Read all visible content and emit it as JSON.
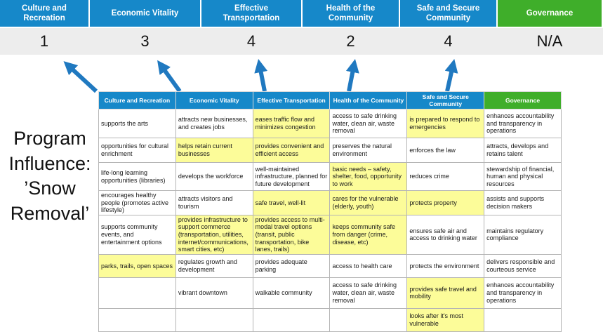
{
  "slide": {
    "title": "Program\nInfluence:\n’Snow\nRemoval’"
  },
  "colors": {
    "header_blue": "#1688C9",
    "header_green": "#3FAE2A",
    "highlight_yellow": "#FCFC99",
    "arrow_blue": "#2079C0",
    "score_bar_bg": "#EDEDED"
  },
  "summary": {
    "columns": [
      {
        "label": "Culture and Recreation",
        "score": "1",
        "color": "#1688C9"
      },
      {
        "label": "Economic Vitality",
        "score": "3",
        "color": "#1688C9"
      },
      {
        "label": "Effective Transportation",
        "score": "4",
        "color": "#1688C9"
      },
      {
        "label": "Health of the Community",
        "score": "2",
        "color": "#1688C9"
      },
      {
        "label": "Safe and Secure Community",
        "score": "4",
        "color": "#1688C9"
      },
      {
        "label": "Governance",
        "score": "N/A",
        "color": "#3FAE2A"
      }
    ]
  },
  "matrix": {
    "headers": [
      "Culture and Recreation",
      "Economic Vitality",
      "Effective Transportation",
      "Health of the Community",
      "Safe and Secure Community",
      "Governance"
    ],
    "rows": [
      [
        {
          "text": "supports the arts",
          "highlight": false
        },
        {
          "text": "attracts new businesses, and creates jobs",
          "highlight": false
        },
        {
          "text": "eases traffic flow and minimizes congestion",
          "highlight": true
        },
        {
          "text": "access to safe drinking water, clean air, waste removal",
          "highlight": false
        },
        {
          "text": "is prepared to respond to emergencies",
          "highlight": true
        },
        {
          "text": "enhances accountability and transparency in operations",
          "highlight": false
        }
      ],
      [
        {
          "text": "opportunities for cultural enrichment",
          "highlight": false
        },
        {
          "text": "helps retain current businesses",
          "highlight": true
        },
        {
          "text": "provides convenient and efficient access",
          "highlight": true
        },
        {
          "text": "preserves the natural environment",
          "highlight": false
        },
        {
          "text": "enforces the law",
          "highlight": false
        },
        {
          "text": "attracts, develops and retains talent",
          "highlight": false
        }
      ],
      [
        {
          "text": "life-long learning opportunities (libraries)",
          "highlight": false
        },
        {
          "text": "develops the workforce",
          "highlight": false
        },
        {
          "text": "well-maintained infrastructure, planned for future development",
          "highlight": false
        },
        {
          "text": "basic needs – safety, shelter, food, opportunity to work",
          "highlight": true
        },
        {
          "text": "reduces crime",
          "highlight": false
        },
        {
          "text": "stewardship of financial, human and physical resources",
          "highlight": false
        }
      ],
      [
        {
          "text": "encourages healthy people (promotes active lifestyle)",
          "highlight": false
        },
        {
          "text": "attracts visitors and tourism",
          "highlight": false
        },
        {
          "text": "safe travel, well-lit",
          "highlight": true
        },
        {
          "text": "cares for the vulnerable (elderly, youth)",
          "highlight": true
        },
        {
          "text": "protects property",
          "highlight": true
        },
        {
          "text": "assists and supports decision makers",
          "highlight": false
        }
      ],
      [
        {
          "text": "supports community events, and entertainment options",
          "highlight": false
        },
        {
          "text": "provides infrastructure to support commerce (transportation, utilities, internet/communications, smart cities, etc)",
          "highlight": true
        },
        {
          "text": "provides access to multi-modal travel options (transit, public transportation, bike lanes, trails)",
          "highlight": true
        },
        {
          "text": "keeps community safe from danger (crime, disease, etc)",
          "highlight": true
        },
        {
          "text": "ensures safe air and access to drinking water",
          "highlight": false
        },
        {
          "text": "maintains regulatory compliance",
          "highlight": false
        }
      ],
      [
        {
          "text": "parks, trails, open spaces",
          "highlight": true
        },
        {
          "text": "regulates growth and development",
          "highlight": false
        },
        {
          "text": "provides adequate parking",
          "highlight": false
        },
        {
          "text": "access to health care",
          "highlight": false
        },
        {
          "text": "protects the environment",
          "highlight": false
        },
        {
          "text": "delivers responsible and courteous service",
          "highlight": false
        }
      ],
      [
        {
          "text": "",
          "highlight": false
        },
        {
          "text": "vibrant downtown",
          "highlight": false
        },
        {
          "text": "walkable community",
          "highlight": false
        },
        {
          "text": "access to safe drinking water, clean air, waste removal",
          "highlight": false
        },
        {
          "text": "provides safe travel and mobility",
          "highlight": true
        },
        {
          "text": "enhances accountability and transparency in operations",
          "highlight": false
        }
      ],
      [
        {
          "text": "",
          "highlight": false
        },
        {
          "text": "",
          "highlight": false
        },
        {
          "text": "",
          "highlight": false
        },
        {
          "text": "",
          "highlight": false
        },
        {
          "text": "looks after it's most vulnerable",
          "highlight": true
        },
        {
          "text": "",
          "highlight": false
        }
      ]
    ]
  }
}
